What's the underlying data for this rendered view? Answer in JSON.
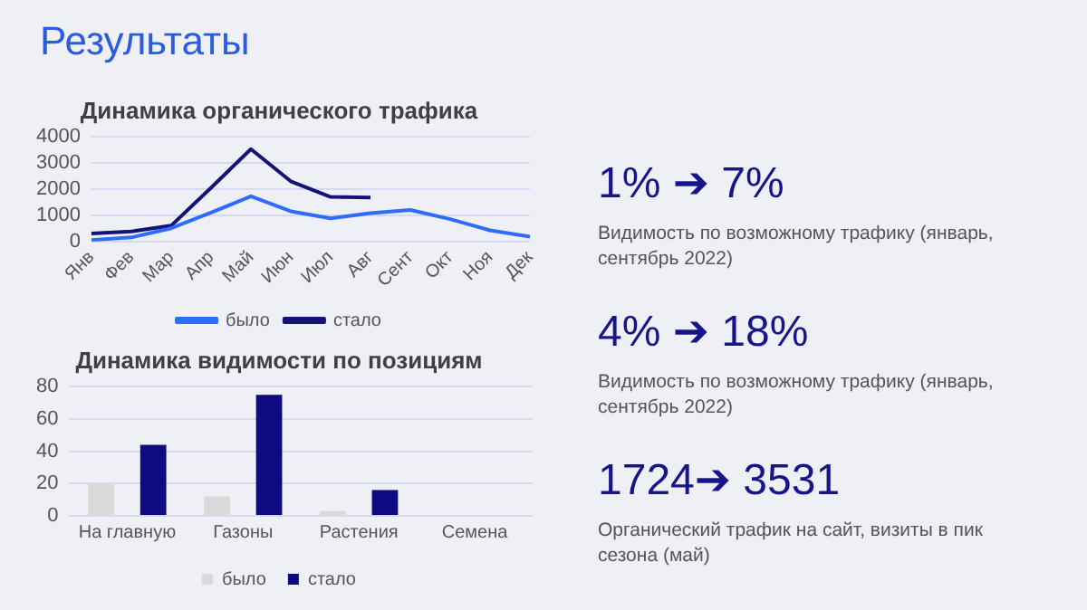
{
  "chart_data": [
    {
      "type": "line",
      "title": "Динамика органического трафика",
      "categories": [
        "Янв",
        "Фев",
        "Мар",
        "Апр",
        "Май",
        "Июн",
        "Июл",
        "Авг",
        "Сент",
        "Окт",
        "Ноя",
        "Дек"
      ],
      "series": [
        {
          "name": "было",
          "color": "#2f6bff",
          "values": [
            50,
            150,
            500,
            1100,
            1724,
            1150,
            880,
            1080,
            1200,
            850,
            420,
            180
          ]
        },
        {
          "name": "стало",
          "color": "#12127a",
          "values": [
            300,
            380,
            600,
            2050,
            3531,
            2300,
            1700,
            1680,
            null,
            null,
            null,
            null
          ]
        }
      ],
      "ylim": [
        0,
        4000
      ],
      "yticks": [
        0,
        1000,
        2000,
        3000,
        4000
      ],
      "grid": "y",
      "legend": "bottom",
      "marker": "none",
      "line_style": "solid"
    },
    {
      "type": "bar",
      "title": "Динамика видимости по позициям",
      "categories": [
        "На главную",
        "Газоны",
        "Растения",
        "Семена"
      ],
      "series": [
        {
          "name": "было",
          "color": "#d9d9d9",
          "values": [
            20,
            12,
            3,
            0
          ]
        },
        {
          "name": "стало",
          "color": "#0c0c80",
          "values": [
            44,
            75,
            16,
            0
          ]
        }
      ],
      "ylim": [
        0,
        80
      ],
      "yticks": [
        0,
        20,
        40,
        60,
        80
      ],
      "grid": "y",
      "legend": "bottom"
    },
    {
      "type": "other",
      "title": "Результаты",
      "annotations": [
        "1% ➔ 7%",
        "Видимость по возможному трафику (январь, сентябрь 2022)",
        "4% ➔ 18%",
        "Видимость по возможному трафику (январь, сентябрь 2022)",
        "1724➔ 3531",
        "Органический трафик на сайт, визиты в пик сезона (май)"
      ]
    }
  ]
}
